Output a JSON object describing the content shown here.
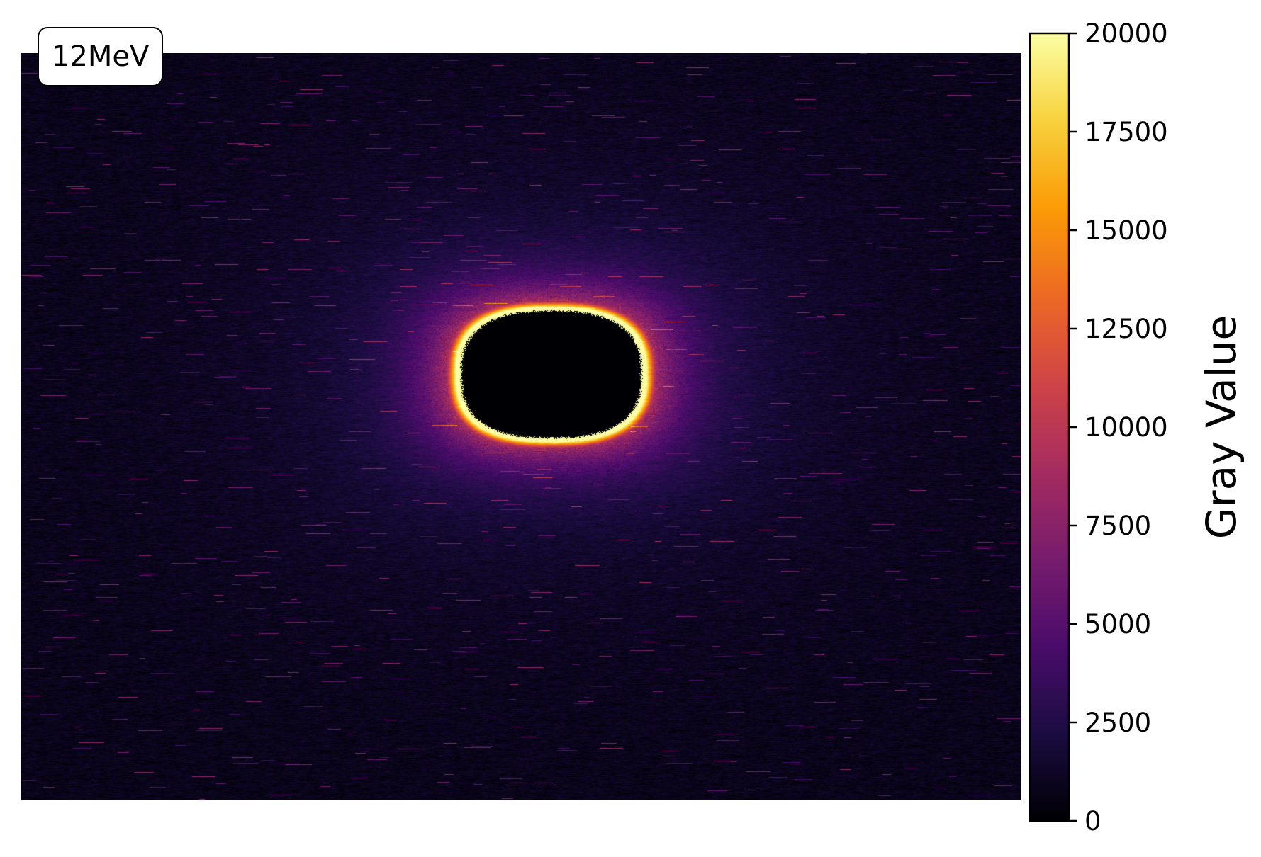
{
  "chart_data": {
    "type": "heatmap",
    "title": "",
    "annotation": "12MeV",
    "xlabel": "",
    "ylabel": "",
    "axes_visible": false,
    "grid": false,
    "colormap": "inferno",
    "colorbar": {
      "label": "Gray Value",
      "range": [
        0,
        20000
      ],
      "ticks": [
        0,
        2500,
        5000,
        7500,
        10000,
        12500,
        15000,
        17500,
        20000
      ],
      "tick_labels": [
        "0",
        "2500",
        "5000",
        "7500",
        "10000",
        "12500",
        "15000",
        "17500",
        "20000"
      ],
      "placement": "right"
    },
    "features": {
      "background_level": 800,
      "ring_peak_level": 20000,
      "ring_center_fraction": [
        0.53,
        0.43
      ],
      "ring_semi_axes_fraction": [
        0.09,
        0.085
      ],
      "hole_level": 0
    }
  },
  "colors": {
    "inferno_stops": [
      "#000004",
      "#1b0c41",
      "#4a0c6b",
      "#781c6d",
      "#a52c60",
      "#cf4446",
      "#ed6925",
      "#fb9b06",
      "#f7d13d",
      "#fcffa4"
    ]
  }
}
